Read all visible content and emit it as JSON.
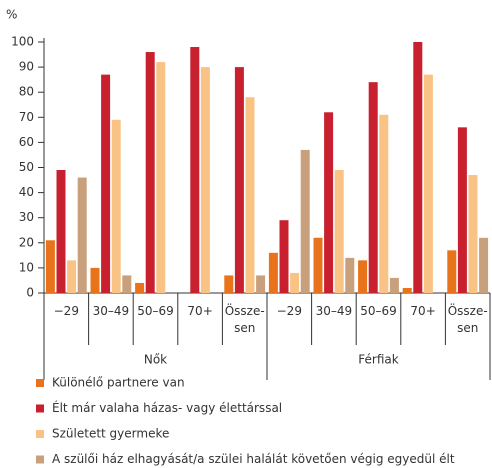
{
  "chart_data": {
    "type": "bar",
    "y_label": "%",
    "groups": [
      "Nők",
      "Férfiak"
    ],
    "categories": [
      "−29",
      "30–49",
      "50–69",
      "70+",
      "Össze-\nsen",
      "−29",
      "30–49",
      "50–69",
      "70+",
      "Össze-\nsen"
    ],
    "series": [
      {
        "name": "Különélő partnere van",
        "color": "#e8731a",
        "values": [
          21,
          10,
          4,
          0,
          7,
          16,
          22,
          13,
          2,
          17
        ]
      },
      {
        "name": "Élt már valaha házas- vagy élettárssal",
        "color": "#c8202f",
        "values": [
          49,
          87,
          96,
          98,
          90,
          29,
          72,
          84,
          100,
          66
        ]
      },
      {
        "name": "Született gyermeke",
        "color": "#f9c386",
        "values": [
          13,
          69,
          92,
          90,
          78,
          8,
          49,
          71,
          87,
          47
        ]
      },
      {
        "name": "A szülői ház elhagyását/a szülei halálát követően végig egyedül élt",
        "color": "#c9a07c",
        "values": [
          46,
          7,
          0,
          0,
          7,
          57,
          14,
          6,
          0,
          22
        ]
      }
    ],
    "ylim": [
      0,
      100
    ],
    "yticks": [
      0,
      10,
      20,
      30,
      40,
      50,
      60,
      70,
      80,
      90,
      100
    ]
  }
}
